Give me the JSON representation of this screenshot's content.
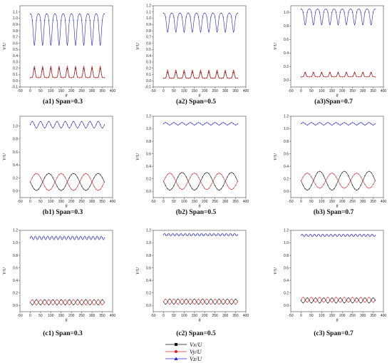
{
  "figure": {
    "x_axis_label": "θ",
    "y_axis_label": "V/U",
    "legend": [
      {
        "label": "Vx/U",
        "color": "#111111",
        "marker": "square"
      },
      {
        "label": "Vy/U",
        "color": "#e02020",
        "marker": "circle"
      },
      {
        "label": "Vz/U",
        "color": "#2020d0",
        "marker": "triangle"
      }
    ]
  },
  "chart_data": [
    {
      "id": "a1",
      "caption": "(a1) Span=0.3",
      "type": "line",
      "xlim": [
        -50,
        400
      ],
      "ylim": [
        -0.1,
        1.2
      ],
      "xticks": [
        -50,
        0,
        50,
        100,
        150,
        200,
        250,
        300,
        350,
        400
      ],
      "yticks": [
        -0.1,
        0.0,
        0.1,
        0.2,
        0.3,
        0.4,
        0.5,
        0.6,
        0.7,
        0.8,
        0.9,
        1.0,
        1.1
      ],
      "series": [
        {
          "name": "Vx/U",
          "color": "#111111",
          "base": 0.05,
          "amp": 0.15,
          "cycles": 9,
          "shape": "spike"
        },
        {
          "name": "Vy/U",
          "color": "#e02020",
          "base": 0.05,
          "amp": 0.18,
          "cycles": 9,
          "shape": "spike"
        },
        {
          "name": "Vz/U",
          "color": "#2020d0",
          "base": 1.07,
          "amp": -0.5,
          "cycles": 9,
          "shape": "dip"
        }
      ]
    },
    {
      "id": "a2",
      "caption": "(a2) Span=0.5",
      "type": "line",
      "xlim": [
        -50,
        400
      ],
      "ylim": [
        -0.1,
        1.2
      ],
      "xticks": [
        -50,
        0,
        50,
        100,
        150,
        200,
        250,
        300,
        350,
        400
      ],
      "yticks": [
        -0.1,
        0.0,
        0.1,
        0.2,
        0.3,
        0.4,
        0.5,
        0.6,
        0.7,
        0.8,
        0.9,
        1.0,
        1.1,
        1.2
      ],
      "series": [
        {
          "name": "Vx/U",
          "color": "#111111",
          "base": 0.04,
          "amp": 0.1,
          "cycles": 9,
          "shape": "spike"
        },
        {
          "name": "Vy/U",
          "color": "#e02020",
          "base": 0.04,
          "amp": 0.13,
          "cycles": 9,
          "shape": "spike"
        },
        {
          "name": "Vz/U",
          "color": "#2020d0",
          "base": 1.08,
          "amp": -0.3,
          "cycles": 9,
          "shape": "dip"
        }
      ]
    },
    {
      "id": "a3",
      "caption": "(a3)Span=0.7",
      "type": "line",
      "xlim": [
        -50,
        400
      ],
      "ylim": [
        -0.1,
        1.1
      ],
      "xticks": [
        -50,
        0,
        50,
        100,
        150,
        200,
        250,
        300,
        350,
        400
      ],
      "yticks": [
        0.0,
        0.2,
        0.4,
        0.6,
        0.8,
        1.0
      ],
      "series": [
        {
          "name": "Vx/U",
          "color": "#111111",
          "base": 0.05,
          "amp": 0.06,
          "cycles": 9,
          "shape": "spike"
        },
        {
          "name": "Vy/U",
          "color": "#e02020",
          "base": 0.05,
          "amp": 0.07,
          "cycles": 9,
          "shape": "spike"
        },
        {
          "name": "Vz/U",
          "color": "#2020d0",
          "base": 1.05,
          "amp": -0.23,
          "cycles": 9,
          "shape": "dip"
        }
      ]
    },
    {
      "id": "b1",
      "caption": "(b1) Span=0.3",
      "type": "line",
      "xlim": [
        -50,
        400
      ],
      "ylim": [
        -0.1,
        1.15
      ],
      "xticks": [
        -50,
        0,
        50,
        100,
        150,
        200,
        250,
        300,
        350,
        400
      ],
      "yticks": [
        0.0,
        0.2,
        0.4,
        0.6,
        0.8,
        1.0
      ],
      "series": [
        {
          "name": "Vx/U",
          "color": "#111111",
          "base": 0.14,
          "amp": 0.13,
          "cycles": 3,
          "shape": "sine",
          "phase": 3.14
        },
        {
          "name": "Vy/U",
          "color": "#e02020",
          "base": 0.14,
          "amp": 0.13,
          "cycles": 3,
          "shape": "sine",
          "phase": 0
        },
        {
          "name": "Vz/U",
          "color": "#2020d0",
          "base": 1.02,
          "amp": 0.05,
          "cycles": 9,
          "shape": "sine",
          "phase": 0
        }
      ]
    },
    {
      "id": "b2",
      "caption": "(b2) Span=0.5",
      "type": "line",
      "xlim": [
        -50,
        400
      ],
      "ylim": [
        -0.1,
        1.2
      ],
      "xticks": [
        -50,
        0,
        50,
        100,
        150,
        200,
        250,
        300,
        350,
        400
      ],
      "yticks": [
        0.0,
        0.2,
        0.4,
        0.6,
        0.8,
        1.0,
        1.2
      ],
      "series": [
        {
          "name": "Vx/U",
          "color": "#111111",
          "base": 0.16,
          "amp": 0.14,
          "cycles": 3,
          "shape": "sine",
          "phase": 3.14
        },
        {
          "name": "Vy/U",
          "color": "#e02020",
          "base": 0.16,
          "amp": 0.13,
          "cycles": 3,
          "shape": "sine",
          "phase": 0
        },
        {
          "name": "Vz/U",
          "color": "#2020d0",
          "base": 1.08,
          "amp": 0.02,
          "cycles": 9,
          "shape": "sine",
          "phase": 0
        }
      ]
    },
    {
      "id": "b3",
      "caption": "(b3) Span=0.7",
      "type": "line",
      "xlim": [
        -50,
        400
      ],
      "ylim": [
        -0.1,
        1.2
      ],
      "xticks": [
        -50,
        0,
        50,
        100,
        150,
        200,
        250,
        300,
        350,
        400
      ],
      "yticks": [
        0.0,
        0.2,
        0.4,
        0.6,
        0.8,
        1.0,
        1.2
      ],
      "series": [
        {
          "name": "Vx/U",
          "color": "#111111",
          "base": 0.17,
          "amp": 0.15,
          "cycles": 3,
          "shape": "sine",
          "phase": 3.14
        },
        {
          "name": "Vy/U",
          "color": "#e02020",
          "base": 0.17,
          "amp": 0.12,
          "cycles": 3,
          "shape": "sine",
          "phase": 0
        },
        {
          "name": "Vz/U",
          "color": "#2020d0",
          "base": 1.08,
          "amp": 0.02,
          "cycles": 9,
          "shape": "sine",
          "phase": 0
        }
      ]
    },
    {
      "id": "c1",
      "caption": "(c1) Span=0.3",
      "type": "line",
      "xlim": [
        -50,
        400
      ],
      "ylim": [
        -0.1,
        1.2
      ],
      "xticks": [
        -50,
        0,
        50,
        100,
        150,
        200,
        250,
        300,
        350,
        400
      ],
      "yticks": [
        0.0,
        0.2,
        0.4,
        0.6,
        0.8,
        1.0,
        1.2
      ],
      "series": [
        {
          "name": "Vx/U",
          "color": "#111111",
          "base": 0.05,
          "amp": 0.04,
          "cycles": 9,
          "shape": "sine",
          "phase": 3.14
        },
        {
          "name": "Vy/U",
          "color": "#e02020",
          "base": 0.05,
          "amp": 0.04,
          "cycles": 9,
          "shape": "sine",
          "phase": 0
        },
        {
          "name": "Vz/U",
          "color": "#2020d0",
          "base": 1.08,
          "amp": 0.03,
          "cycles": 18,
          "shape": "sine",
          "phase": 0
        }
      ]
    },
    {
      "id": "c2",
      "caption": "(c2) Span=0.5",
      "type": "line",
      "xlim": [
        -50,
        400
      ],
      "ylim": [
        -0.1,
        1.2
      ],
      "xticks": [
        -50,
        0,
        50,
        100,
        150,
        200,
        250,
        300,
        350,
        400
      ],
      "yticks": [
        0.0,
        0.2,
        0.4,
        0.6,
        0.8,
        1.0,
        1.2
      ],
      "series": [
        {
          "name": "Vx/U",
          "color": "#111111",
          "base": 0.06,
          "amp": 0.04,
          "cycles": 9,
          "shape": "sine",
          "phase": 3.14
        },
        {
          "name": "Vy/U",
          "color": "#e02020",
          "base": 0.06,
          "amp": 0.04,
          "cycles": 9,
          "shape": "sine",
          "phase": 0
        },
        {
          "name": "Vz/U",
          "color": "#2020d0",
          "base": 1.13,
          "amp": 0.02,
          "cycles": 18,
          "shape": "sine",
          "phase": 0
        }
      ]
    },
    {
      "id": "c3",
      "caption": "(c3) Span=0.7",
      "type": "line",
      "xlim": [
        -50,
        400
      ],
      "ylim": [
        -0.1,
        1.2
      ],
      "xticks": [
        -50,
        0,
        50,
        100,
        150,
        200,
        250,
        300,
        350,
        400
      ],
      "yticks": [
        0.0,
        0.2,
        0.4,
        0.6,
        0.8,
        1.0,
        1.2
      ],
      "series": [
        {
          "name": "Vx/U",
          "color": "#111111",
          "base": 0.08,
          "amp": 0.04,
          "cycles": 9,
          "shape": "sine",
          "phase": 3.14
        },
        {
          "name": "Vy/U",
          "color": "#e02020",
          "base": 0.09,
          "amp": 0.04,
          "cycles": 9,
          "shape": "sine",
          "phase": 0
        },
        {
          "name": "Vz/U",
          "color": "#2020d0",
          "base": 1.12,
          "amp": 0.02,
          "cycles": 18,
          "shape": "sine",
          "phase": 0
        }
      ]
    }
  ]
}
